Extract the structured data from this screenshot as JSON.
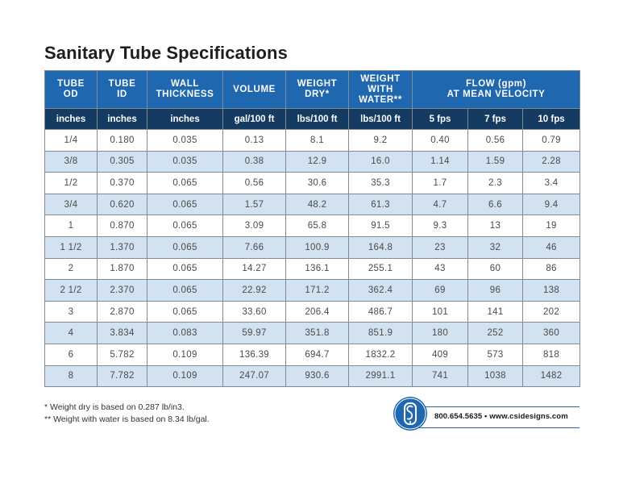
{
  "title": "Sanitary Tube Specifications",
  "columns": [
    {
      "lines": [
        "TUBE",
        "OD"
      ],
      "unit": "inches"
    },
    {
      "lines": [
        "TUBE",
        "ID"
      ],
      "unit": "inches"
    },
    {
      "lines": [
        "WALL",
        "THICKNESS"
      ],
      "unit": "inches"
    },
    {
      "lines": [
        "VOLUME"
      ],
      "unit": "gal/100 ft"
    },
    {
      "lines": [
        "WEIGHT",
        "DRY*"
      ],
      "unit": "lbs/100 ft"
    },
    {
      "lines": [
        "WEIGHT",
        "WITH",
        "WATER**"
      ],
      "unit": "lbs/100 ft"
    }
  ],
  "flow_header": {
    "lines": [
      "FLOW (gpm)",
      "AT MEAN VELOCITY"
    ],
    "units": [
      "5 fps",
      "7 fps",
      "10 fps"
    ]
  },
  "rows": [
    [
      "1/4",
      "0.180",
      "0.035",
      "0.13",
      "8.1",
      "9.2",
      "0.40",
      "0.56",
      "0.79"
    ],
    [
      "3/8",
      "0.305",
      "0.035",
      "0.38",
      "12.9",
      "16.0",
      "1.14",
      "1.59",
      "2.28"
    ],
    [
      "1/2",
      "0.370",
      "0.065",
      "0.56",
      "30.6",
      "35.3",
      "1.7",
      "2.3",
      "3.4"
    ],
    [
      "3/4",
      "0.620",
      "0.065",
      "1.57",
      "48.2",
      "61.3",
      "4.7",
      "6.6",
      "9.4"
    ],
    [
      "1",
      "0.870",
      "0.065",
      "3.09",
      "65.8",
      "91.5",
      "9.3",
      "13",
      "19"
    ],
    [
      "1 1/2",
      "1.370",
      "0.065",
      "7.66",
      "100.9",
      "164.8",
      "23",
      "32",
      "46"
    ],
    [
      "2",
      "1.870",
      "0.065",
      "14.27",
      "136.1",
      "255.1",
      "43",
      "60",
      "86"
    ],
    [
      "2 1/2",
      "2.370",
      "0.065",
      "22.92",
      "171.2",
      "362.4",
      "69",
      "96",
      "138"
    ],
    [
      "3",
      "2.870",
      "0.065",
      "33.60",
      "206.4",
      "486.7",
      "101",
      "141",
      "202"
    ],
    [
      "4",
      "3.834",
      "0.083",
      "59.97",
      "351.8",
      "851.9",
      "180",
      "252",
      "360"
    ],
    [
      "6",
      "5.782",
      "0.109",
      "136.39",
      "694.7",
      "1832.2",
      "409",
      "573",
      "818"
    ],
    [
      "8",
      "7.782",
      "0.109",
      "247.07",
      "930.6",
      "2991.1",
      "741",
      "1038",
      "1482"
    ]
  ],
  "footnotes": [
    "*  Weight dry is based on 0.287 lb/in3.",
    "** Weight with water is based on 8.34 lb/gal."
  ],
  "contact": "800.654.5635 • www.csidesigns.com",
  "logo": {
    "icon": "csi-logo-icon",
    "color": "#1f68b0"
  },
  "colors": {
    "header": "#1f68b0",
    "units_row": "#163b63",
    "stripe": "#d3e2f0"
  }
}
